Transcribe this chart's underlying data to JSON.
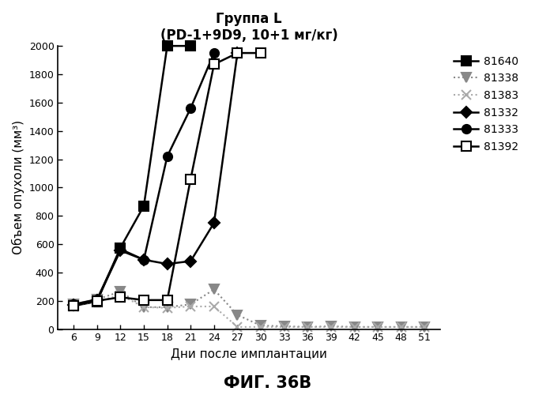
{
  "title_line1": "Группа L",
  "title_line2": "(PD-1+9D9, 10+1 мг/кг)",
  "xlabel": "Дни после имплантации",
  "ylabel": "Объем опухоли (мм³)",
  "fig_label": "ФИГ. 36B",
  "xlim": [
    4,
    53
  ],
  "ylim": [
    0,
    2000
  ],
  "xticks": [
    6,
    9,
    12,
    15,
    18,
    21,
    24,
    27,
    30,
    33,
    36,
    39,
    42,
    45,
    48,
    51
  ],
  "yticks": [
    0,
    200,
    400,
    600,
    800,
    1000,
    1200,
    1400,
    1600,
    1800,
    2000
  ],
  "series": [
    {
      "label": "81640",
      "color": "#000000",
      "marker": "s",
      "markerfacecolor": "#000000",
      "markeredgecolor": "#000000",
      "linestyle": "-",
      "linewidth": 1.8,
      "markersize": 8,
      "x": [
        6,
        9,
        12,
        15,
        18,
        21
      ],
      "y": [
        165,
        195,
        575,
        870,
        2000,
        2000
      ]
    },
    {
      "label": "81338",
      "color": "#888888",
      "marker": "v",
      "markerfacecolor": "#888888",
      "markeredgecolor": "#888888",
      "linestyle": ":",
      "linewidth": 1.5,
      "markersize": 8,
      "x": [
        6,
        9,
        12,
        15,
        18,
        21,
        24,
        27,
        30,
        33,
        36,
        39,
        42,
        45,
        48,
        51
      ],
      "y": [
        175,
        210,
        265,
        155,
        155,
        175,
        280,
        100,
        25,
        20,
        15,
        20,
        15,
        15,
        15,
        15
      ]
    },
    {
      "label": "81383",
      "color": "#aaaaaa",
      "marker": "x",
      "markerfacecolor": "#aaaaaa",
      "markeredgecolor": "#aaaaaa",
      "linestyle": ":",
      "linewidth": 1.5,
      "markersize": 8,
      "x": [
        6,
        9,
        12,
        15,
        18,
        21,
        24,
        27,
        30,
        33,
        36,
        39,
        42,
        45,
        48,
        51
      ],
      "y": [
        160,
        195,
        240,
        155,
        150,
        160,
        160,
        15,
        15,
        15,
        15,
        15,
        15,
        15,
        15,
        15
      ]
    },
    {
      "label": "81332",
      "color": "#000000",
      "marker": "D",
      "markerfacecolor": "#000000",
      "markeredgecolor": "#000000",
      "linestyle": "-",
      "linewidth": 1.8,
      "markersize": 7,
      "x": [
        6,
        9,
        12,
        15,
        18,
        21,
        24,
        27
      ],
      "y": [
        170,
        205,
        555,
        490,
        460,
        480,
        750,
        1950
      ]
    },
    {
      "label": "81333",
      "color": "#000000",
      "marker": "o",
      "markerfacecolor": "#000000",
      "markeredgecolor": "#000000",
      "linestyle": "-",
      "linewidth": 1.8,
      "markersize": 8,
      "x": [
        6,
        9,
        12,
        15,
        18,
        21,
        24
      ],
      "y": [
        175,
        210,
        565,
        490,
        1220,
        1560,
        1950
      ]
    },
    {
      "label": "81392",
      "color": "#000000",
      "marker": "s",
      "markerfacecolor": "white",
      "markeredgecolor": "#000000",
      "linestyle": "-",
      "linewidth": 1.8,
      "markersize": 8,
      "x": [
        6,
        9,
        12,
        15,
        18,
        21,
        24,
        27,
        30
      ],
      "y": [
        165,
        200,
        225,
        205,
        205,
        1060,
        1870,
        1950,
        1950
      ]
    }
  ]
}
